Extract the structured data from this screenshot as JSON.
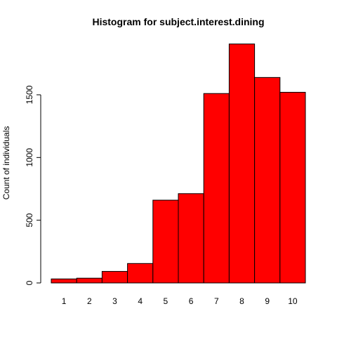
{
  "chart_data": {
    "type": "bar",
    "title": "Histogram for subject.interest.dining",
    "xlabel": "",
    "ylabel": "Count of individuals",
    "categories": [
      "1",
      "2",
      "3",
      "4",
      "5",
      "6",
      "7",
      "8",
      "9",
      "10"
    ],
    "values": [
      32,
      38,
      92,
      155,
      660,
      712,
      1510,
      1905,
      1638,
      1520
    ],
    "ylim": [
      0,
      1960
    ],
    "yticks": [
      0,
      500,
      1000,
      1500
    ],
    "ytick_labels": [
      "0",
      "500",
      "1000",
      "1500"
    ],
    "grid": false,
    "bar_color": "#ff0000",
    "edge_color": "#000000"
  }
}
